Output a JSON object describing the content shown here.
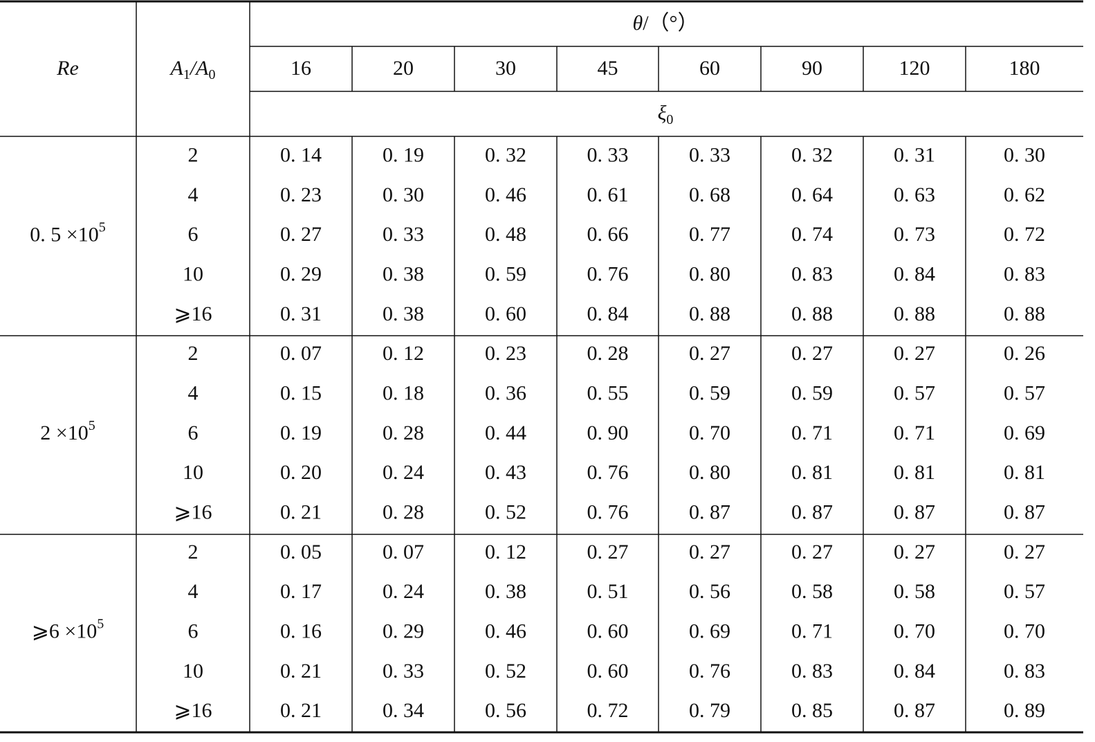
{
  "header": {
    "re": "Re",
    "ratio": [
      "A",
      "1",
      "/A",
      "0"
    ],
    "theta": "θ",
    "theta_unit": "/（°）",
    "angles": [
      "16",
      "20",
      "30",
      "45",
      "60",
      "90",
      "120",
      "180"
    ],
    "xi": [
      "ξ",
      "0"
    ]
  },
  "groups": [
    {
      "re": {
        "base": "0. 5 ×10",
        "exp": "5"
      },
      "rows": [
        {
          "ratio": "2",
          "values": [
            "0. 14",
            "0. 19",
            "0. 32",
            "0. 33",
            "0. 33",
            "0. 32",
            "0. 31",
            "0. 30"
          ]
        },
        {
          "ratio": "4",
          "values": [
            "0. 23",
            "0. 30",
            "0. 46",
            "0. 61",
            "0. 68",
            "0. 64",
            "0. 63",
            "0. 62"
          ]
        },
        {
          "ratio": "6",
          "values": [
            "0. 27",
            "0. 33",
            "0. 48",
            "0. 66",
            "0. 77",
            "0. 74",
            "0. 73",
            "0. 72"
          ]
        },
        {
          "ratio": "10",
          "values": [
            "0. 29",
            "0. 38",
            "0. 59",
            "0. 76",
            "0. 80",
            "0. 83",
            "0. 84",
            "0. 83"
          ]
        },
        {
          "ratio": "⩾16",
          "values": [
            "0. 31",
            "0. 38",
            "0. 60",
            "0. 84",
            "0. 88",
            "0. 88",
            "0. 88",
            "0. 88"
          ]
        }
      ]
    },
    {
      "re": {
        "base": "2 ×10",
        "exp": "5"
      },
      "rows": [
        {
          "ratio": "2",
          "values": [
            "0. 07",
            "0. 12",
            "0. 23",
            "0. 28",
            "0. 27",
            "0. 27",
            "0. 27",
            "0. 26"
          ]
        },
        {
          "ratio": "4",
          "values": [
            "0. 15",
            "0. 18",
            "0. 36",
            "0. 55",
            "0. 59",
            "0. 59",
            "0. 57",
            "0. 57"
          ]
        },
        {
          "ratio": "6",
          "values": [
            "0. 19",
            "0. 28",
            "0. 44",
            "0. 90",
            "0. 70",
            "0. 71",
            "0. 71",
            "0. 69"
          ]
        },
        {
          "ratio": "10",
          "values": [
            "0. 20",
            "0. 24",
            "0. 43",
            "0. 76",
            "0. 80",
            "0. 81",
            "0. 81",
            "0. 81"
          ]
        },
        {
          "ratio": "⩾16",
          "values": [
            "0. 21",
            "0. 28",
            "0. 52",
            "0. 76",
            "0. 87",
            "0. 87",
            "0. 87",
            "0. 87"
          ]
        }
      ]
    },
    {
      "re": {
        "base": "⩾6 ×10",
        "exp": "5"
      },
      "rows": [
        {
          "ratio": "2",
          "values": [
            "0. 05",
            "0. 07",
            "0. 12",
            "0. 27",
            "0. 27",
            "0. 27",
            "0. 27",
            "0. 27"
          ]
        },
        {
          "ratio": "4",
          "values": [
            "0. 17",
            "0. 24",
            "0. 38",
            "0. 51",
            "0. 56",
            "0. 58",
            "0. 58",
            "0. 57"
          ]
        },
        {
          "ratio": "6",
          "values": [
            "0. 16",
            "0. 29",
            "0. 46",
            "0. 60",
            "0. 69",
            "0. 71",
            "0. 70",
            "0. 70"
          ]
        },
        {
          "ratio": "10",
          "values": [
            "0. 21",
            "0. 33",
            "0. 52",
            "0. 60",
            "0. 76",
            "0. 83",
            "0. 84",
            "0. 83"
          ]
        },
        {
          "ratio": "⩾16",
          "values": [
            "0. 21",
            "0. 34",
            "0. 56",
            "0. 72",
            "0. 79",
            "0. 85",
            "0. 87",
            "0. 89"
          ]
        }
      ]
    }
  ]
}
